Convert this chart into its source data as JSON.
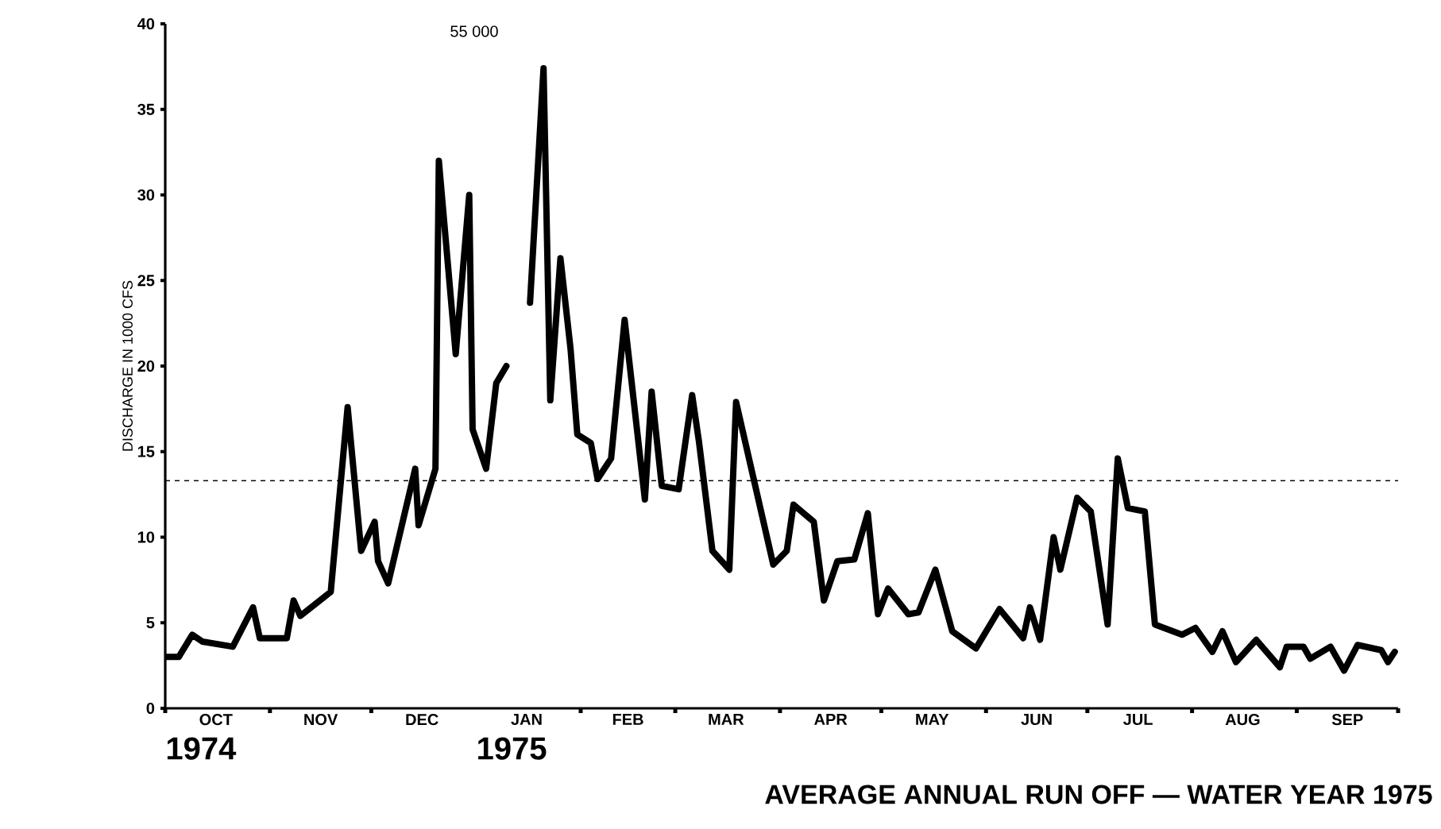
{
  "chart_data": {
    "type": "line",
    "title": "AVERAGE ANNUAL RUN OFF — WATER YEAR 1975",
    "ylabel": "DISCHARGE IN 1000 CFS",
    "xlim": [
      "1974-10-01",
      "1975-10-01"
    ],
    "ylim": [
      0,
      40
    ],
    "yticks": [
      0,
      5,
      10,
      15,
      20,
      25,
      30,
      35,
      40
    ],
    "xticks": [
      {
        "value": "1974-10-01",
        "label": null
      },
      {
        "value": "1974-10-16",
        "label": "OCT"
      },
      {
        "value": "1974-11-01",
        "label": null
      },
      {
        "value": "1974-11-16",
        "label": "NOV"
      },
      {
        "value": "1974-12-01",
        "label": null
      },
      {
        "value": "1974-12-16",
        "label": "DEC"
      },
      {
        "value": "1975-01-16",
        "label": "JAN"
      },
      {
        "value": "1975-02-01",
        "label": null
      },
      {
        "value": "1975-02-15",
        "label": "FEB"
      },
      {
        "value": "1975-03-01",
        "label": null
      },
      {
        "value": "1975-03-16",
        "label": "MAR"
      },
      {
        "value": "1975-04-01",
        "label": null
      },
      {
        "value": "1975-04-16",
        "label": "APR"
      },
      {
        "value": "1975-05-01",
        "label": null
      },
      {
        "value": "1975-05-16",
        "label": "MAY"
      },
      {
        "value": "1975-06-01",
        "label": null
      },
      {
        "value": "1975-06-16",
        "label": "JUN"
      },
      {
        "value": "1975-07-01",
        "label": null
      },
      {
        "value": "1975-07-16",
        "label": "JUL"
      },
      {
        "value": "1975-08-01",
        "label": null
      },
      {
        "value": "1975-08-16",
        "label": "AUG"
      },
      {
        "value": "1975-09-01",
        "label": null
      },
      {
        "value": "1975-09-16",
        "label": "SEP"
      },
      {
        "value": "1975-10-01",
        "label": null
      }
    ],
    "x": [
      "1974-10-01",
      "1974-10-05",
      "1974-10-09",
      "1974-10-12",
      "1974-10-21",
      "1974-10-27",
      "1974-10-29",
      "1974-11-06",
      "1974-11-08",
      "1974-11-10",
      "1974-11-19",
      "1974-11-24",
      "1974-11-28",
      "1974-12-02",
      "1974-12-03",
      "1974-12-06",
      "1974-12-14",
      "1974-12-15",
      "1974-12-20",
      "1974-12-21",
      "1974-12-26",
      "1974-12-30",
      "1974-12-31",
      "1975-01-04",
      "1975-01-07",
      "1975-01-10",
      "1975-01-12",
      "1975-01-17",
      "1975-01-21",
      "1975-01-23",
      "1975-01-26",
      "1975-01-29",
      "1975-01-31",
      "1975-02-04",
      "1975-02-06",
      "1975-02-10",
      "1975-02-14",
      "1975-02-20",
      "1975-02-22",
      "1975-02-25",
      "1975-03-02",
      "1975-03-06",
      "1975-03-08",
      "1975-03-12",
      "1975-03-17",
      "1975-03-19",
      "1975-03-30",
      "1975-04-03",
      "1975-04-05",
      "1975-04-11",
      "1975-04-14",
      "1975-04-18",
      "1975-04-23",
      "1975-04-27",
      "1975-04-30",
      "1975-05-03",
      "1975-05-09",
      "1975-05-12",
      "1975-05-17",
      "1975-05-22",
      "1975-05-29",
      "1975-06-05",
      "1975-06-12",
      "1975-06-14",
      "1975-06-17",
      "1975-06-21",
      "1975-06-23",
      "1975-06-28",
      "1975-07-02",
      "1975-07-07",
      "1975-07-10",
      "1975-07-13",
      "1975-07-18",
      "1975-07-21",
      "1975-07-29",
      "1975-08-02",
      "1975-08-07",
      "1975-08-10",
      "1975-08-14",
      "1975-08-20",
      "1975-08-27",
      "1975-08-29",
      "1975-09-03",
      "1975-09-05",
      "1975-09-11",
      "1975-09-15",
      "1975-09-19",
      "1975-09-26",
      "1975-09-28",
      "1975-09-30"
    ],
    "values": [
      3.0,
      3.0,
      4.3,
      3.9,
      3.6,
      5.9,
      4.1,
      4.1,
      6.3,
      5.4,
      6.8,
      17.6,
      9.2,
      10.9,
      8.6,
      7.3,
      14.0,
      10.7,
      14.0,
      32.0,
      20.7,
      30.0,
      16.3,
      14.0,
      19.0,
      20.0,
      null,
      23.7,
      37.4,
      18.0,
      26.3,
      21.0,
      16.0,
      15.5,
      13.4,
      14.6,
      22.7,
      12.2,
      18.5,
      13.0,
      12.8,
      18.3,
      15.6,
      9.2,
      8.1,
      17.9,
      8.4,
      9.2,
      11.9,
      10.9,
      6.3,
      8.6,
      8.7,
      11.4,
      5.5,
      7.0,
      5.5,
      5.6,
      8.1,
      4.5,
      3.5,
      5.8,
      4.1,
      5.9,
      4.0,
      10.0,
      8.1,
      12.3,
      11.5,
      4.9,
      14.6,
      11.7,
      11.5,
      4.9,
      4.3,
      4.7,
      3.3,
      4.5,
      2.7,
      4.0,
      2.4,
      3.6,
      3.6,
      2.9,
      3.6,
      2.2,
      3.7,
      3.4,
      2.7,
      3.3
    ],
    "color": "#000000",
    "line_style": "solid",
    "ref_lines": [
      {
        "axis": "y",
        "value": 13.3,
        "line_style": "dashed"
      }
    ],
    "annotations": [
      "55 000",
      "1974",
      "1975"
    ]
  }
}
